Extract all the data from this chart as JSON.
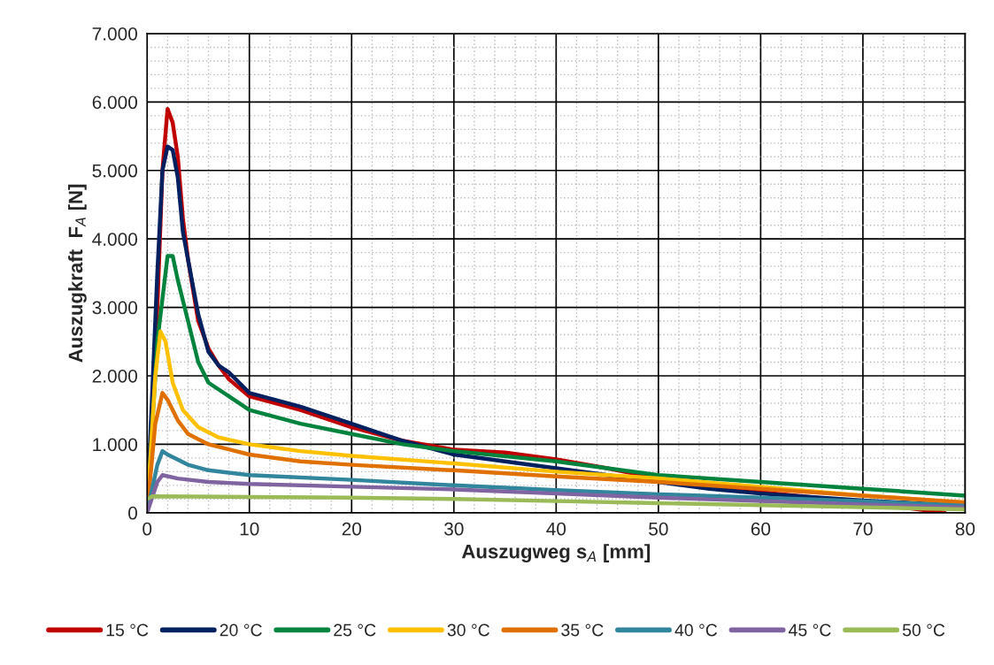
{
  "chart_data": {
    "type": "line",
    "xlabel": "Auszugweg s$_{A}$ [mm]",
    "ylabel": "Auszugkraft  F$_{A}$ [N]",
    "xlim": [
      0,
      80
    ],
    "xticks": [
      0,
      10,
      20,
      30,
      40,
      50,
      60,
      70,
      80
    ],
    "ylim": [
      0,
      7000
    ],
    "yticks": [
      0,
      {
        "value": 1000,
        "label": "1.000"
      },
      {
        "value": 2000,
        "label": "2.000"
      },
      {
        "value": 3000,
        "label": "3.000"
      },
      {
        "value": 4000,
        "label": "4.000"
      },
      {
        "value": 5000,
        "label": "5.000"
      },
      {
        "value": 6000,
        "label": "6.000"
      },
      {
        "value": 7000,
        "label": "7.000"
      }
    ],
    "grid": true,
    "legend": "bottom",
    "marker": "none",
    "line_style": "solid",
    "series": [
      {
        "name": "15 °C",
        "color": "#c00000",
        "x": [
          0,
          1,
          1.5,
          2,
          2.5,
          3,
          3.5,
          4,
          5,
          6,
          7,
          8,
          10,
          15,
          20,
          25,
          30,
          35,
          40,
          45,
          50,
          55,
          60,
          70,
          78
        ],
        "values": [
          0,
          3000,
          5000,
          5900,
          5700,
          5200,
          4300,
          3700,
          2800,
          2400,
          2150,
          1950,
          1700,
          1500,
          1250,
          1050,
          920,
          880,
          780,
          650,
          500,
          380,
          300,
          150,
          0
        ]
      },
      {
        "name": "20 °C",
        "color": "#002060",
        "x": [
          0,
          1,
          1.5,
          2,
          2.5,
          3,
          3.5,
          4,
          5,
          6,
          7,
          8,
          10,
          15,
          20,
          25,
          30,
          35,
          40,
          45,
          50,
          55,
          60,
          70,
          80
        ],
        "values": [
          0,
          3500,
          5000,
          5350,
          5300,
          4900,
          4100,
          3700,
          2900,
          2350,
          2150,
          2050,
          1750,
          1550,
          1300,
          1050,
          850,
          750,
          650,
          550,
          450,
          350,
          280,
          180,
          100
        ]
      },
      {
        "name": "25 °C",
        "color": "#00843d",
        "x": [
          0,
          1,
          2,
          2.5,
          3,
          4,
          5,
          6,
          8,
          10,
          15,
          20,
          25,
          30,
          40,
          50,
          60,
          70,
          80
        ],
        "values": [
          0,
          2500,
          3750,
          3750,
          3400,
          2800,
          2200,
          1900,
          1700,
          1500,
          1300,
          1150,
          1000,
          900,
          750,
          550,
          450,
          350,
          250
        ]
      },
      {
        "name": "30 °C",
        "color": "#ffc000",
        "x": [
          0,
          0.8,
          1.3,
          1.8,
          2.5,
          3.5,
          5,
          7,
          10,
          15,
          20,
          30,
          40,
          50,
          60,
          70,
          80
        ],
        "values": [
          0,
          2000,
          2650,
          2500,
          1900,
          1500,
          1250,
          1100,
          1000,
          900,
          830,
          720,
          600,
          500,
          380,
          250,
          150
        ]
      },
      {
        "name": "35 °C",
        "color": "#e07000",
        "x": [
          0,
          0.8,
          1.5,
          2,
          3,
          4,
          6,
          10,
          15,
          20,
          30,
          40,
          50,
          60,
          70,
          80
        ],
        "values": [
          0,
          1300,
          1750,
          1650,
          1350,
          1150,
          1000,
          850,
          750,
          700,
          620,
          530,
          450,
          350,
          250,
          150
        ]
      },
      {
        "name": "40 °C",
        "color": "#31859c",
        "x": [
          0,
          1,
          1.5,
          2,
          4,
          6,
          10,
          20,
          30,
          40,
          50,
          60,
          70,
          80
        ],
        "values": [
          0,
          700,
          900,
          850,
          700,
          620,
          550,
          480,
          400,
          330,
          270,
          220,
          170,
          100
        ]
      },
      {
        "name": "45 °C",
        "color": "#8064a2",
        "x": [
          0,
          1,
          1.5,
          3,
          6,
          10,
          20,
          30,
          40,
          50,
          60,
          70,
          80
        ],
        "values": [
          0,
          450,
          550,
          500,
          450,
          420,
          380,
          340,
          280,
          220,
          170,
          120,
          80
        ]
      },
      {
        "name": "50 °C",
        "color": "#9bbb59",
        "x": [
          0,
          0.5,
          10,
          20,
          30,
          40,
          50,
          60,
          70,
          80
        ],
        "values": [
          200,
          240,
          230,
          220,
          200,
          170,
          140,
          110,
          80,
          50
        ]
      }
    ]
  }
}
